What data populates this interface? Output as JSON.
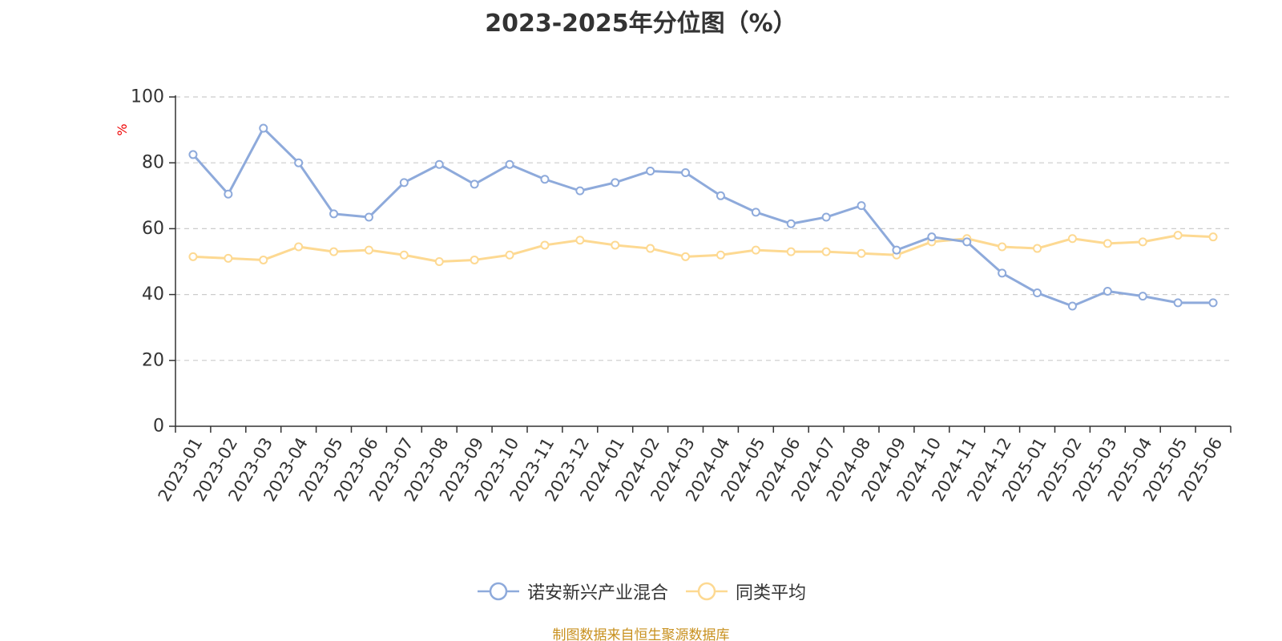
{
  "chart_data": {
    "type": "line",
    "title": "2023-2025年分位图（%）",
    "ylabel": "%",
    "xlabel": "",
    "ylim": [
      0,
      100
    ],
    "yticks": [
      "0",
      "20",
      "40",
      "60",
      "80",
      "100"
    ],
    "grid": true,
    "legend_position": "bottom",
    "categories": [
      "2023-01",
      "2023-02",
      "2023-03",
      "2023-04",
      "2023-05",
      "2023-06",
      "2023-07",
      "2023-08",
      "2023-09",
      "2023-10",
      "2023-11",
      "2023-12",
      "2024-01",
      "2024-02",
      "2024-03",
      "2024-04",
      "2024-05",
      "2024-06",
      "2024-07",
      "2024-08",
      "2024-09",
      "2024-10",
      "2024-11",
      "2024-12",
      "2025-01",
      "2025-02",
      "2025-03",
      "2025-04",
      "2025-05",
      "2025-06"
    ],
    "series": [
      {
        "name": "诺安新兴产业混合",
        "color": "#8eaadb",
        "values": [
          82.5,
          70.5,
          90.5,
          80,
          64.5,
          63.5,
          74,
          79.5,
          73.5,
          79.5,
          75,
          71.5,
          74,
          77.5,
          77,
          70,
          65,
          61.5,
          63.5,
          67,
          53.5,
          57.5,
          56,
          46.5,
          40.5,
          36.5,
          41,
          39.5,
          37.5,
          37.5
        ]
      },
      {
        "name": "同类平均",
        "color": "#fdd992",
        "values": [
          51.5,
          51,
          50.5,
          54.5,
          53,
          53.5,
          52,
          50,
          50.5,
          52,
          55,
          56.5,
          55,
          54,
          51.5,
          52,
          53.5,
          53,
          53,
          52.5,
          52,
          56,
          57,
          54.5,
          54,
          57,
          55.5,
          56,
          58,
          57.5
        ]
      }
    ]
  },
  "footer": {
    "source": "制图数据来自恒生聚源数据库"
  },
  "colors": {
    "grid": "#cccccc",
    "axis": "#333333",
    "ylabel": "#ee0000",
    "source": "#c8901e"
  }
}
